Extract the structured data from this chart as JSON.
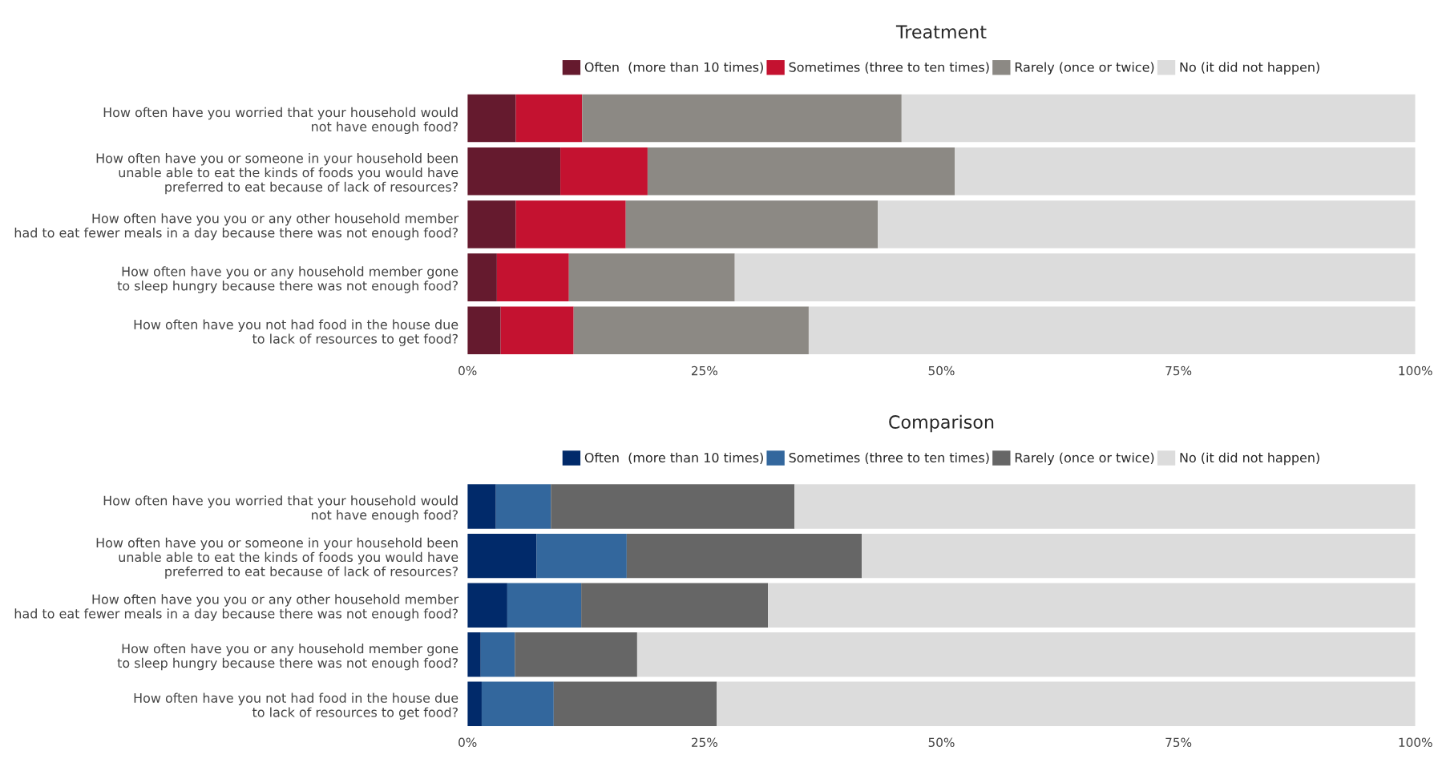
{
  "chart_data": [
    {
      "type": "bar",
      "orientation": "horizontal",
      "stacked": true,
      "title": "Treatment",
      "legend": "top",
      "categories": [
        "How often have you worried that your household would\nnot have enough food?",
        "How often have you or someone in your household been\nunable able to eat the kinds of foods you would have\npreferred to eat because of lack of resources?",
        "How often have you you or any other household member\nhad to eat fewer meals in a day because there was not enough food?",
        "How often have you or any household member gone\nto sleep hungry because there was not enough food?",
        "How often have you not had food in the house due\nto lack of resources to get food?"
      ],
      "xlim": [
        0,
        100
      ],
      "xticks": [
        {
          "value": 0,
          "label": "0%"
        },
        {
          "value": 25,
          "label": "25%"
        },
        {
          "value": 50,
          "label": "50%"
        },
        {
          "value": 75,
          "label": "75%"
        },
        {
          "value": 100,
          "label": "100%"
        }
      ],
      "series": [
        {
          "name": "Often  (more than 10 times)",
          "color": "#651a2e",
          "values": [
            5.1,
            9.8,
            5.1,
            3.1,
            3.5
          ]
        },
        {
          "name": "Sometimes (three to ten times)",
          "color": "#c41230",
          "values": [
            7.0,
            9.2,
            11.6,
            7.6,
            7.7
          ]
        },
        {
          "name": "Rarely (once or twice)",
          "color": "#8c8984",
          "values": [
            33.7,
            32.4,
            26.6,
            17.5,
            24.8
          ]
        },
        {
          "name": "No (it did not happen)",
          "color": "#dcdcdc",
          "values": [
            54.2,
            48.6,
            56.7,
            71.8,
            64.0
          ]
        }
      ]
    },
    {
      "type": "bar",
      "orientation": "horizontal",
      "stacked": true,
      "title": "Comparison",
      "legend": "top",
      "categories": [
        "How often have you worried that your household would\nnot have enough food?",
        "How often have you or someone in your household been\nunable able to eat the kinds of foods you would have\npreferred to eat because of lack of resources?",
        "How often have you you or any other household member\nhad to eat fewer meals in a day because there was not enough food?",
        "How often have you or any household member gone\nto sleep hungry because there was not enough food?",
        "How often have you not had food in the house due\nto lack of resources to get food?"
      ],
      "xlim": [
        0,
        100
      ],
      "xticks": [
        {
          "value": 0,
          "label": "0%"
        },
        {
          "value": 25,
          "label": "25%"
        },
        {
          "value": 50,
          "label": "50%"
        },
        {
          "value": 75,
          "label": "75%"
        },
        {
          "value": 100,
          "label": "100%"
        }
      ],
      "series": [
        {
          "name": "Often  (more than 10 times)",
          "color": "#012a6a",
          "values": [
            3.0,
            7.3,
            4.2,
            1.4,
            1.5
          ]
        },
        {
          "name": "Sometimes (three to ten times)",
          "color": "#33679d",
          "values": [
            5.8,
            9.5,
            7.8,
            3.6,
            7.6
          ]
        },
        {
          "name": "Rarely (once or twice)",
          "color": "#666666",
          "values": [
            25.7,
            24.8,
            19.7,
            12.9,
            17.2
          ]
        },
        {
          "name": "No (it did not happen)",
          "color": "#dcdcdc",
          "values": [
            65.5,
            58.4,
            68.3,
            82.1,
            73.7
          ]
        }
      ]
    }
  ]
}
